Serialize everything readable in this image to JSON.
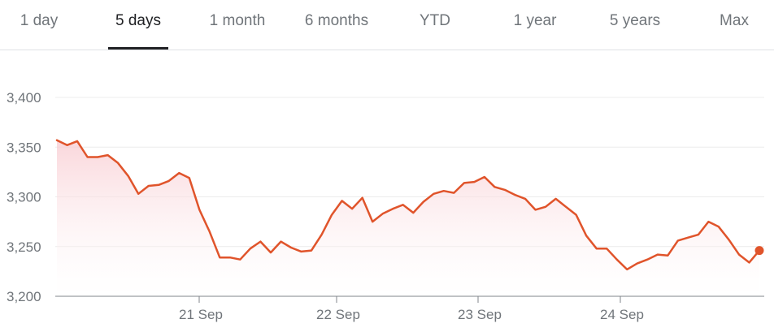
{
  "tabs": [
    {
      "label": "1 day",
      "active": false
    },
    {
      "label": "5 days",
      "active": true
    },
    {
      "label": "1 month",
      "active": false
    },
    {
      "label": "6 months",
      "active": false
    },
    {
      "label": "YTD",
      "active": false
    },
    {
      "label": "1 year",
      "active": false
    },
    {
      "label": "5 years",
      "active": false
    },
    {
      "label": "Max",
      "active": false
    }
  ],
  "colors": {
    "line": "#e0542b",
    "fill_top": "#f8c9cf",
    "fill_bottom": "#ffffff",
    "grid": "#ececec",
    "axis": "#80868b"
  },
  "chart_data": {
    "type": "line",
    "x_axis_type": "time",
    "x_ticks": [
      "21 Sep",
      "22 Sep",
      "23 Sep",
      "24 Sep"
    ],
    "y_ticks": [
      "3,400",
      "3,350",
      "3,300",
      "3,250",
      "3,200"
    ],
    "ylim": [
      3200,
      3400
    ],
    "grid": "horizontal",
    "series": [
      {
        "values": [
          3357,
          3352,
          3356,
          3340,
          3340,
          3342,
          3334,
          3321,
          3303,
          3311,
          3312,
          3316,
          3324,
          3319,
          3287,
          3265,
          3239,
          3239,
          3237,
          3248,
          3255,
          3244,
          3255,
          3249,
          3245,
          3246,
          3262,
          3282,
          3296,
          3288,
          3299,
          3275,
          3283,
          3288,
          3292,
          3284,
          3295,
          3303,
          3306,
          3304,
          3314,
          3315,
          3320,
          3310,
          3307,
          3302,
          3298,
          3287,
          3290,
          3298,
          3290,
          3282,
          3261,
          3248,
          3248,
          3237,
          3227,
          3233,
          3237,
          3242,
          3241,
          3256,
          3259,
          3262,
          3275,
          3270,
          3257,
          3242,
          3234,
          3246
        ]
      }
    ]
  }
}
